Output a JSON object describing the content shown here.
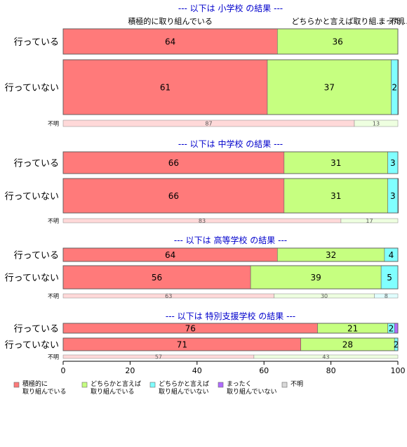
{
  "chart_data": {
    "type": "bar",
    "orientation": "horizontal-stacked-100",
    "xlim": [
      0,
      100
    ],
    "xticks": [
      "0",
      "20",
      "40",
      "60",
      "80",
      "100"
    ],
    "categories_legend": [
      "積極的に\n取り組んでいる",
      "どちらかと言えば\n取り組んでいる",
      "どちらかと言えば\n取り組んでいない",
      "まったく\n取り組んでいない",
      "不明"
    ],
    "colors": [
      "#ff7a7a",
      "#c6ff80",
      "#80ffff",
      "#b06bff",
      "#d9d9d9"
    ],
    "top_labels": [
      {
        "text": "積極的に取り組んでいる",
        "at": 32
      },
      {
        "text": "どちらかと言えば取り組...",
        "at": 82
      },
      {
        "text": "まった...",
        "at": 98.6
      },
      {
        "text": "不明",
        "at": 99.6
      }
    ],
    "panels": [
      {
        "title": "--- 以下は 小学校 の結果 ---",
        "rows": [
          {
            "label": "行っている",
            "values": [
              64,
              36,
              0,
              0,
              0
            ]
          },
          {
            "label": "行っていない",
            "values": [
              61,
              37,
              2,
              0.4,
              0
            ]
          }
        ],
        "unknown": {
          "label": "不明",
          "values": [
            87,
            13
          ]
        }
      },
      {
        "title": "--- 以下は 中学校 の結果 ---",
        "rows": [
          {
            "label": "行っている",
            "values": [
              66,
              31,
              3,
              0,
              0
            ]
          },
          {
            "label": "行っていない",
            "values": [
              66,
              31,
              3,
              0.6,
              0
            ]
          }
        ],
        "unknown": {
          "label": "不明",
          "values": [
            83,
            17
          ]
        }
      },
      {
        "title": "--- 以下は 高等学校 の結果 ---",
        "rows": [
          {
            "label": "行っている",
            "values": [
              64,
              32,
              4,
              0,
              0
            ]
          },
          {
            "label": "行っていない",
            "values": [
              56,
              39,
              5,
              0,
              0
            ]
          }
        ],
        "unknown": {
          "label": "不明",
          "values": [
            63,
            30,
            8
          ]
        }
      },
      {
        "title": "--- 以下は 特別支援学校 の結果 ---",
        "rows": [
          {
            "label": "行っている",
            "values": [
              76,
              21,
              2,
              1,
              0
            ]
          },
          {
            "label": "行っていない",
            "values": [
              71,
              28,
              2,
              0,
              0
            ]
          }
        ],
        "unknown": {
          "label": "不明",
          "values": [
            57,
            43
          ]
        }
      }
    ]
  }
}
